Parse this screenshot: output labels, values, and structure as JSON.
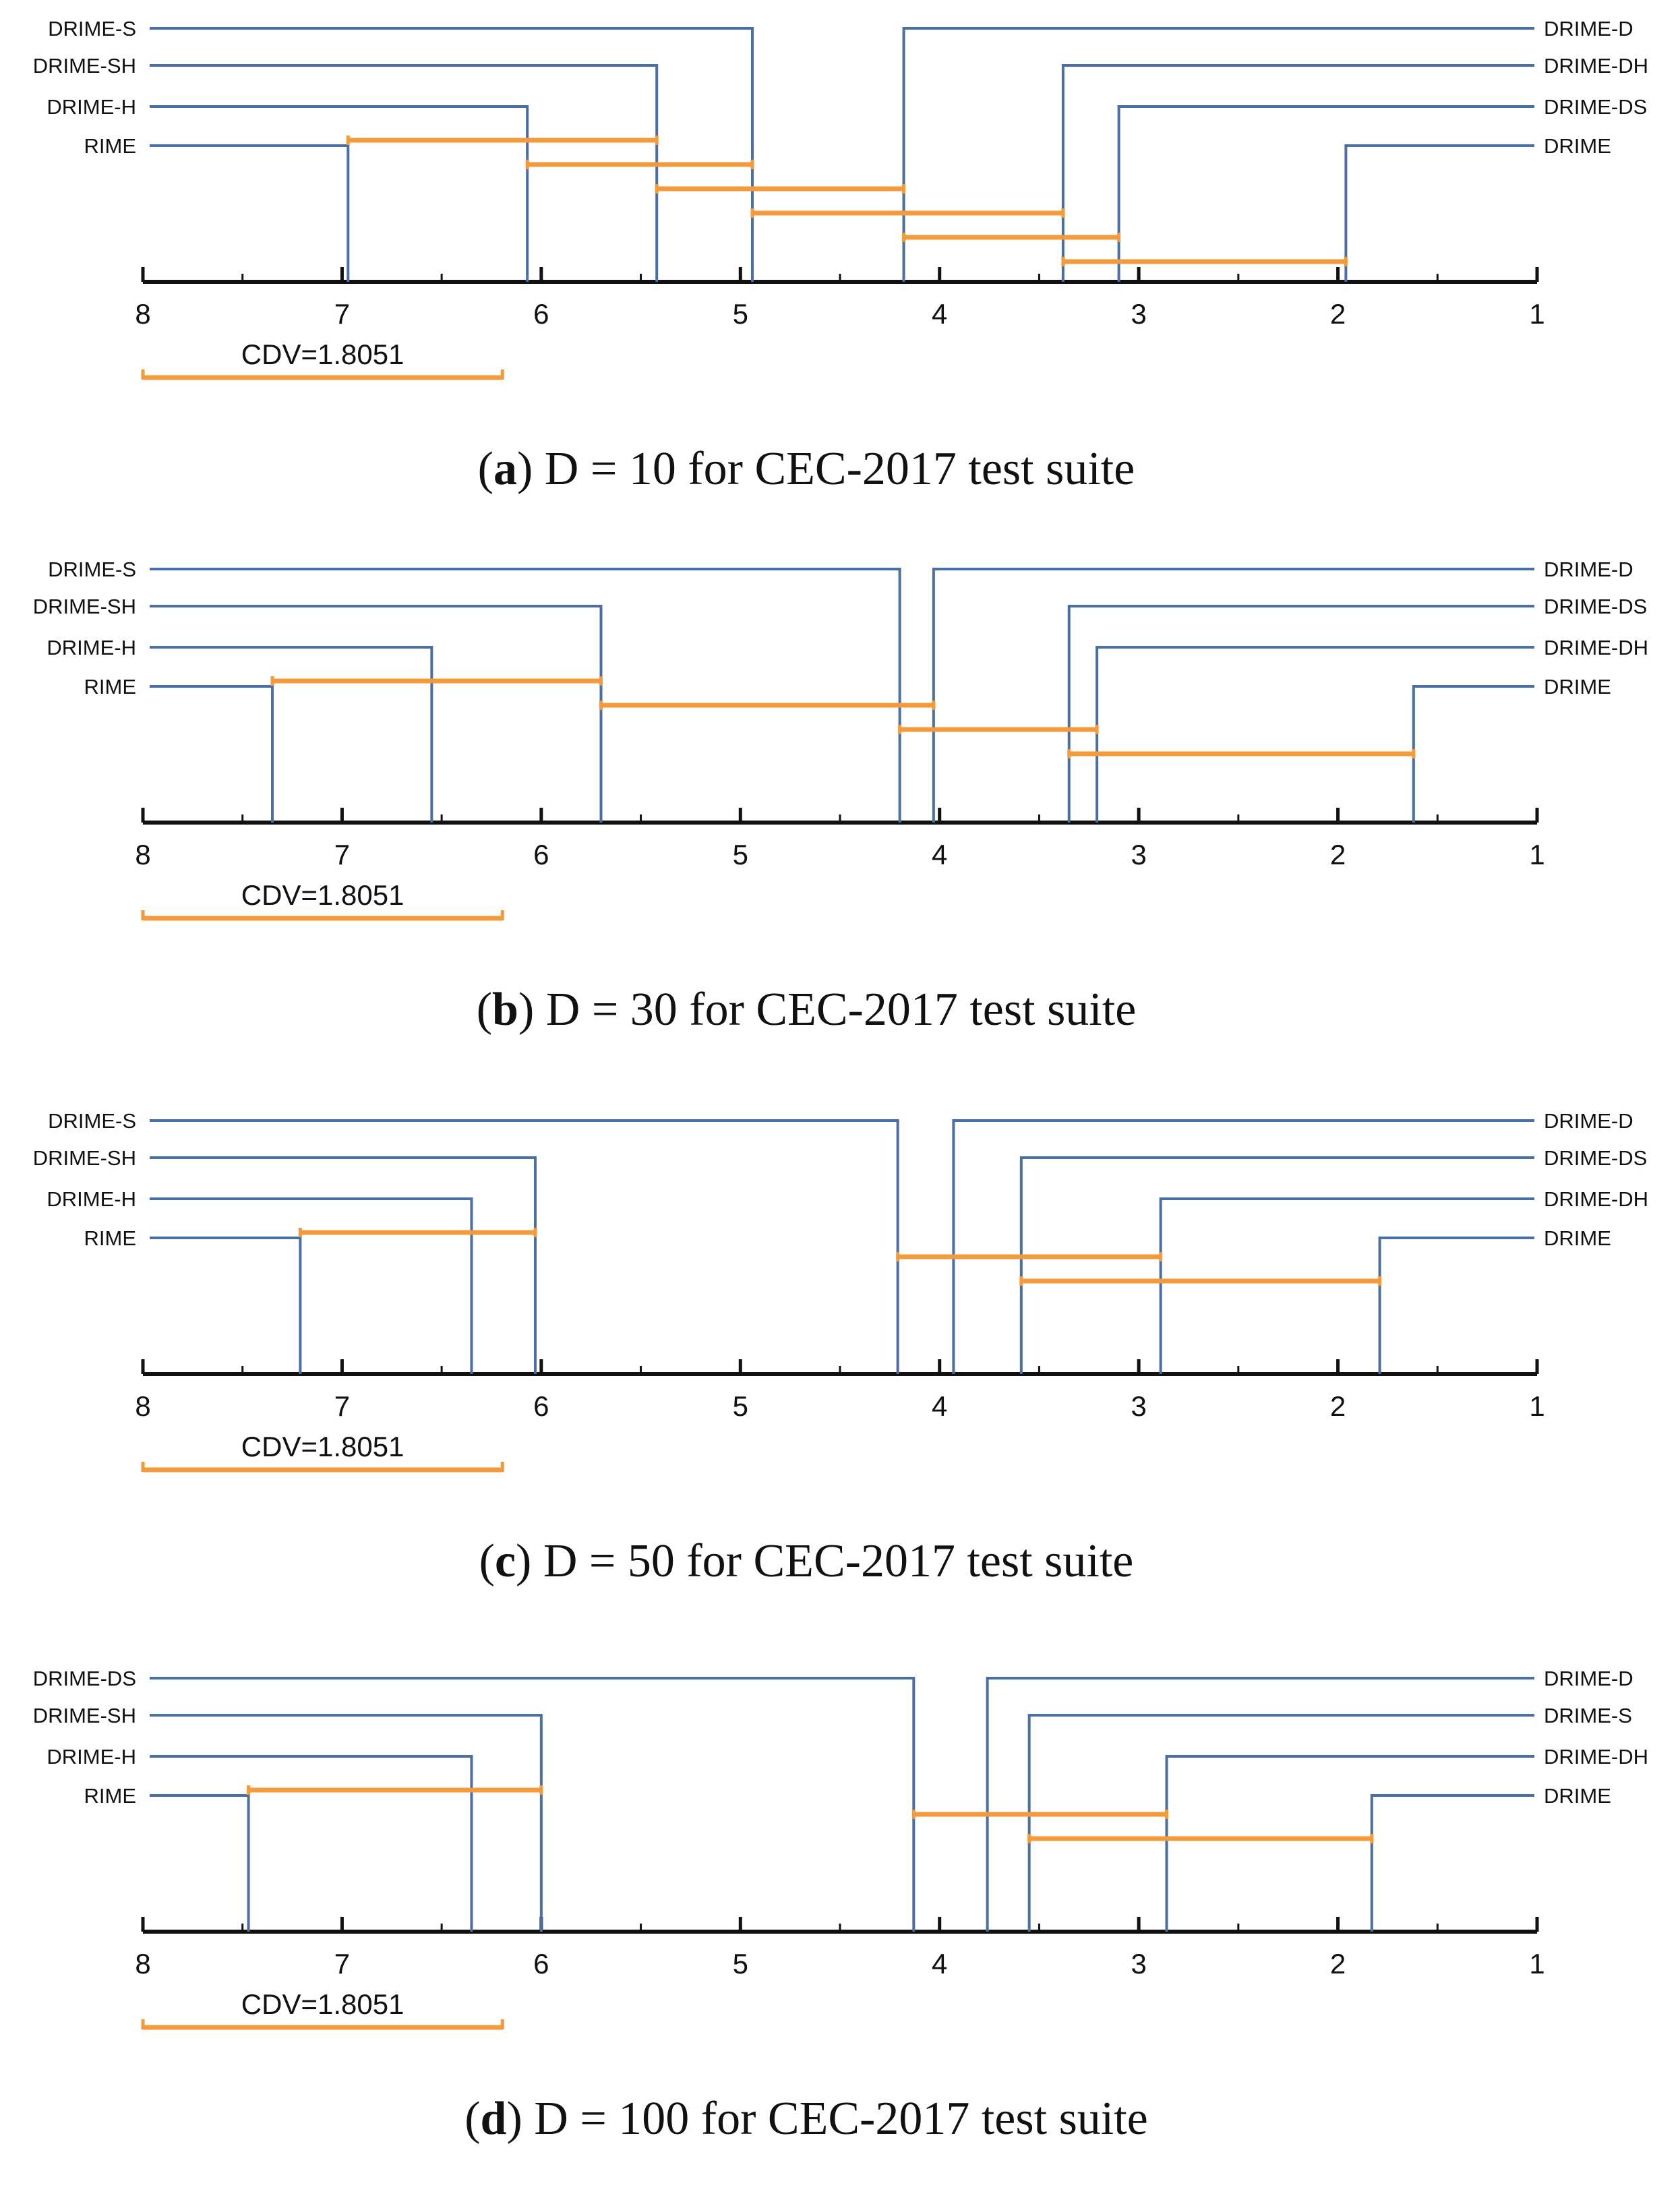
{
  "chart_data": [
    {
      "type": "critical-difference",
      "caption_letter": "a",
      "caption_text": "D = 10 for CEC-2017 test suite",
      "cdv_label": "CDV=1.8051",
      "cd_value": 1.8051,
      "axis": {
        "range": [
          8,
          1
        ],
        "ticks": [
          "8",
          "7",
          "6",
          "5",
          "4",
          "3",
          "2",
          "1"
        ]
      },
      "left_methods": [
        {
          "name": "DRIME-S",
          "rank": 4.94
        },
        {
          "name": "DRIME-SH",
          "rank": 5.42
        },
        {
          "name": "DRIME-H",
          "rank": 6.07
        },
        {
          "name": "RIME",
          "rank": 6.97
        }
      ],
      "right_methods": [
        {
          "name": "DRIME-D",
          "rank": 4.18
        },
        {
          "name": "DRIME-DH",
          "rank": 3.38
        },
        {
          "name": "DRIME-DS",
          "rank": 3.1
        },
        {
          "name": "DRIME",
          "rank": 1.96
        }
      ],
      "cliques": [
        [
          6.97,
          5.42
        ],
        [
          6.07,
          4.94
        ],
        [
          5.42,
          4.18
        ],
        [
          4.94,
          3.38
        ],
        [
          4.18,
          3.1
        ],
        [
          3.38,
          1.96
        ]
      ]
    },
    {
      "type": "critical-difference",
      "caption_letter": "b",
      "caption_text": "D = 30 for CEC-2017 test suite",
      "cdv_label": "CDV=1.8051",
      "cd_value": 1.8051,
      "axis": {
        "range": [
          8,
          1
        ],
        "ticks": [
          "8",
          "7",
          "6",
          "5",
          "4",
          "3",
          "2",
          "1"
        ]
      },
      "left_methods": [
        {
          "name": "DRIME-S",
          "rank": 4.2
        },
        {
          "name": "DRIME-SH",
          "rank": 5.7
        },
        {
          "name": "DRIME-H",
          "rank": 6.55
        },
        {
          "name": "RIME",
          "rank": 7.35
        }
      ],
      "right_methods": [
        {
          "name": "DRIME-D",
          "rank": 4.03
        },
        {
          "name": "DRIME-DS",
          "rank": 3.35
        },
        {
          "name": "DRIME-DH",
          "rank": 3.21
        },
        {
          "name": "DRIME",
          "rank": 1.62
        }
      ],
      "cliques": [
        [
          7.35,
          5.7
        ],
        [
          5.7,
          4.03
        ],
        [
          4.2,
          3.21
        ],
        [
          3.35,
          1.62
        ]
      ]
    },
    {
      "type": "critical-difference",
      "caption_letter": "c",
      "caption_text": "D = 50 for CEC-2017 test suite",
      "cdv_label": "CDV=1.8051",
      "cd_value": 1.8051,
      "axis": {
        "range": [
          8,
          1
        ],
        "ticks": [
          "8",
          "7",
          "6",
          "5",
          "4",
          "3",
          "2",
          "1"
        ]
      },
      "left_methods": [
        {
          "name": "DRIME-S",
          "rank": 4.21
        },
        {
          "name": "DRIME-SH",
          "rank": 6.03
        },
        {
          "name": "DRIME-H",
          "rank": 6.35
        },
        {
          "name": "RIME",
          "rank": 7.21
        }
      ],
      "right_methods": [
        {
          "name": "DRIME-D",
          "rank": 3.93
        },
        {
          "name": "DRIME-DS",
          "rank": 3.59
        },
        {
          "name": "DRIME-DH",
          "rank": 2.89
        },
        {
          "name": "DRIME",
          "rank": 1.79
        }
      ],
      "cliques": [
        [
          7.21,
          6.03
        ],
        [
          4.21,
          2.89
        ],
        [
          3.59,
          1.79
        ]
      ]
    },
    {
      "type": "critical-difference",
      "caption_letter": "d",
      "caption_text": "D = 100 for CEC-2017 test suite",
      "cdv_label": "CDV=1.8051",
      "cd_value": 1.8051,
      "axis": {
        "range": [
          8,
          1
        ],
        "ticks": [
          "8",
          "7",
          "6",
          "5",
          "4",
          "3",
          "2",
          "1"
        ]
      },
      "left_methods": [
        {
          "name": "DRIME-DS",
          "rank": 4.13
        },
        {
          "name": "DRIME-SH",
          "rank": 6.0
        },
        {
          "name": "DRIME-H",
          "rank": 6.35
        },
        {
          "name": "RIME",
          "rank": 7.47
        }
      ],
      "right_methods": [
        {
          "name": "DRIME-D",
          "rank": 3.76
        },
        {
          "name": "DRIME-S",
          "rank": 3.55
        },
        {
          "name": "DRIME-DH",
          "rank": 2.86
        },
        {
          "name": "DRIME",
          "rank": 1.83
        }
      ],
      "cliques": [
        [
          7.47,
          6.0
        ],
        [
          4.13,
          2.86
        ],
        [
          3.55,
          1.83
        ]
      ]
    }
  ],
  "colors": {
    "method_line": "#4a6fa5",
    "clique_bar": "#f39a3c",
    "axis": "#111111",
    "text": "#111111"
  }
}
